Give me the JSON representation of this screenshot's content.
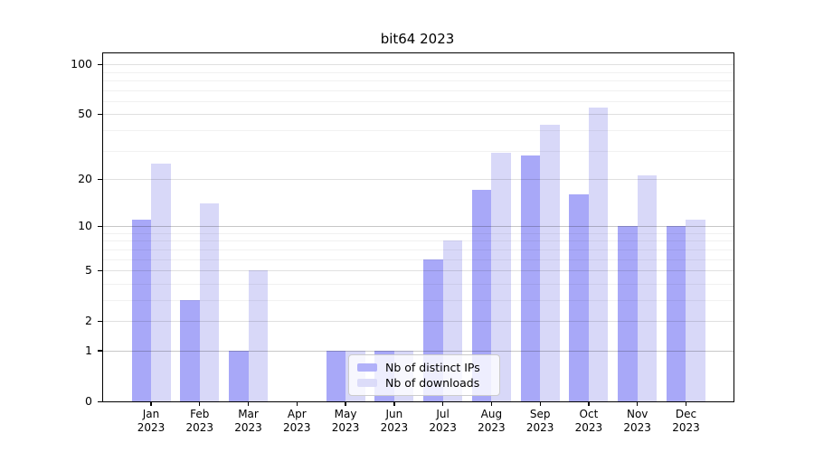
{
  "title": "bit64 2023",
  "chart_data": {
    "type": "bar",
    "title": "bit64 2023",
    "categories": [
      {
        "month": "Jan",
        "year": "2023"
      },
      {
        "month": "Feb",
        "year": "2023"
      },
      {
        "month": "Mar",
        "year": "2023"
      },
      {
        "month": "Apr",
        "year": "2023"
      },
      {
        "month": "May",
        "year": "2023"
      },
      {
        "month": "Jun",
        "year": "2023"
      },
      {
        "month": "Jul",
        "year": "2023"
      },
      {
        "month": "Aug",
        "year": "2023"
      },
      {
        "month": "Sep",
        "year": "2023"
      },
      {
        "month": "Oct",
        "year": "2023"
      },
      {
        "month": "Nov",
        "year": "2023"
      },
      {
        "month": "Dec",
        "year": "2023"
      }
    ],
    "series": [
      {
        "name": "Nb of distinct IPs",
        "color": "#a8a8f8",
        "values": [
          11,
          3,
          1,
          0,
          1,
          1,
          6,
          17,
          28,
          16,
          10,
          10
        ]
      },
      {
        "name": "Nb of downloads",
        "color": "#d8d8f8",
        "values": [
          25,
          14,
          5,
          0,
          1,
          1,
          8,
          29,
          43,
          55,
          21,
          11
        ]
      }
    ],
    "y_axis": {
      "scale": "log1p",
      "ticks": [
        0,
        1,
        2,
        5,
        10,
        20,
        50,
        100
      ],
      "strong_gridlines": [
        1,
        10
      ],
      "mid_gridlines": [
        2,
        5,
        20,
        50,
        100
      ],
      "minor_gridlines": [
        3,
        4,
        6,
        7,
        8,
        9,
        30,
        40,
        60,
        70,
        80,
        90
      ]
    },
    "legend_position": "lower center",
    "grid": true
  }
}
